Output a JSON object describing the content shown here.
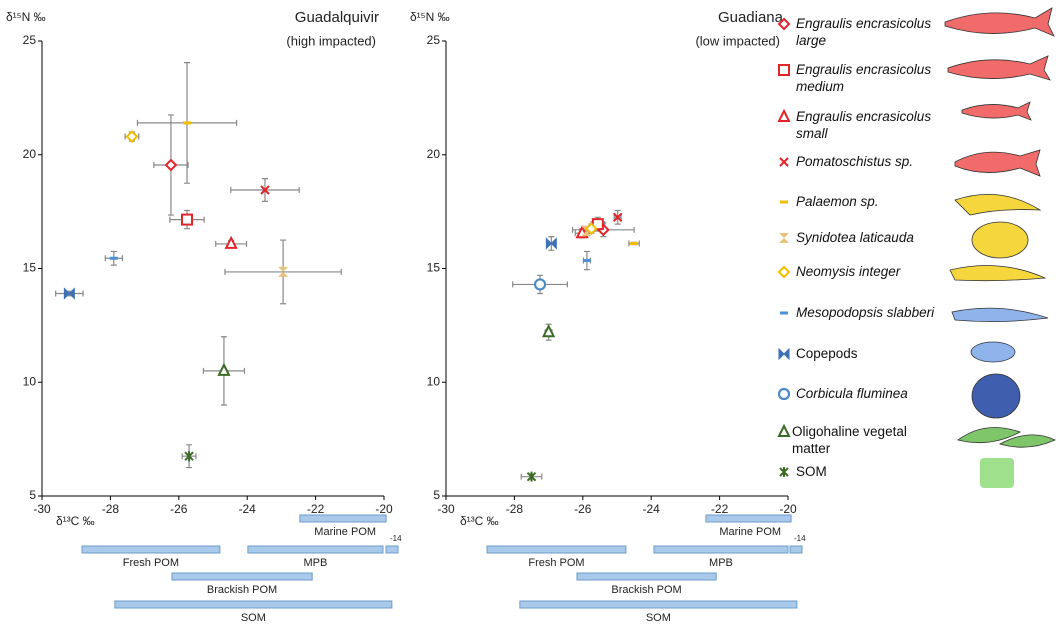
{
  "chart_data": [
    {
      "type": "scatter",
      "title": "Guadalquivir",
      "subtitle": "(high impacted)",
      "xlabel": "δ¹³C ‰",
      "ylabel": "δ¹⁵N ‰",
      "xlim": [
        -30,
        -20
      ],
      "xticks": [
        -30,
        -28,
        -26,
        -24,
        -22,
        -20
      ],
      "ylim": [
        5,
        25
      ],
      "yticks": [
        5,
        10,
        15,
        20,
        25
      ],
      "series": [
        {
          "name": "Engraulis encrasicolus large",
          "marker": "diamond",
          "color": "#e3242b",
          "x": [
            -26.23
          ],
          "values": [
            19.55
          ],
          "xerr": [
            0.5
          ],
          "yerr": [
            2.2
          ]
        },
        {
          "name": "Engraulis encrasicolus medium",
          "marker": "square",
          "color": "#e3242b",
          "x": [
            -25.76
          ],
          "values": [
            17.15
          ],
          "xerr": [
            0.5
          ],
          "yerr": [
            0.4
          ]
        },
        {
          "name": "Engraulis encrasicolus small",
          "marker": "triangle",
          "color": "#e3242b",
          "x": [
            -24.47
          ],
          "values": [
            16.08
          ],
          "xerr": [
            0.45
          ],
          "yerr": [
            0.15
          ]
        },
        {
          "name": "Pomatoschistus sp.",
          "marker": "cross",
          "color": "#e3242b",
          "x": [
            -23.48
          ],
          "values": [
            18.45
          ],
          "xerr": [
            1.0
          ],
          "yerr": [
            0.5
          ]
        },
        {
          "name": "Palaemon sp.",
          "marker": "bar",
          "color": "#f2bd00",
          "x": [
            -25.76
          ],
          "values": [
            21.4
          ],
          "xerr": [
            1.45
          ],
          "yerr": [
            2.65
          ]
        },
        {
          "name": "Synidotea laticauda",
          "marker": "hourglass",
          "color": "#e8c27a",
          "x": [
            -22.95
          ],
          "values": [
            14.85
          ],
          "xerr": [
            1.7
          ],
          "yerr": [
            1.4
          ]
        },
        {
          "name": "Neomysis integer",
          "marker": "diamond",
          "color": "#f2bd00",
          "x": [
            -27.37
          ],
          "values": [
            20.8
          ],
          "xerr": [
            0.2
          ],
          "yerr": [
            0.2
          ]
        },
        {
          "name": "Mesopodopsis slabberi",
          "marker": "bar",
          "color": "#4a90d9",
          "x": [
            -27.9
          ],
          "values": [
            15.45
          ],
          "xerr": [
            0.25
          ],
          "yerr": [
            0.3
          ]
        },
        {
          "name": "Copepods",
          "marker": "bowtie",
          "color": "#3f72b5",
          "x": [
            -29.2
          ],
          "values": [
            13.9
          ],
          "xerr": [
            0.4
          ],
          "yerr": [
            0.1
          ]
        },
        {
          "name": "Oligohaline vegetal matter",
          "marker": "triangle",
          "color": "#3a6b25",
          "x": [
            -24.68
          ],
          "values": [
            10.5
          ],
          "xerr": [
            0.6
          ],
          "yerr": [
            1.5
          ]
        },
        {
          "name": "SOM",
          "marker": "asterisk",
          "color": "#3a6b25",
          "x": [
            -25.7
          ],
          "values": [
            6.75
          ],
          "xerr": [
            0.2
          ],
          "yerr": [
            0.5
          ]
        }
      ],
      "ranges": [
        {
          "name": "Marine POM",
          "start": -22.46,
          "end": -19.94
        },
        {
          "name": "Fresh POM",
          "start": -28.83,
          "end": -24.8
        },
        {
          "name": "MPB",
          "start": -23.98,
          "end": -20.03
        },
        {
          "name": "Brackish POM",
          "start": -26.2,
          "end": -22.1
        },
        {
          "name": "SOM",
          "start": -27.87,
          "end": -19.77
        }
      ],
      "break_label": "-14"
    },
    {
      "type": "scatter",
      "title": "Guadiana",
      "subtitle": "(low impacted)",
      "xlabel": "δ¹³C ‰",
      "ylabel": "δ¹⁵N ‰",
      "xlim": [
        -30,
        -20
      ],
      "xticks": [
        -30,
        -28,
        -26,
        -24,
        -22,
        -20
      ],
      "ylim": [
        5,
        25
      ],
      "yticks": [
        5,
        10,
        15,
        20,
        25
      ],
      "series": [
        {
          "name": "Engraulis encrasicolus large",
          "marker": "diamond",
          "color": "#e3242b",
          "italic": true,
          "x": [
            -25.4
          ],
          "values": [
            16.7
          ],
          "xerr": [
            0.9
          ],
          "yerr": [
            0.3
          ]
        },
        {
          "name": "Engraulis encrasicolus medium",
          "marker": "square",
          "color": "#e3242b",
          "italic": true,
          "x": [
            -25.56
          ],
          "values": [
            16.95
          ],
          "xerr": [
            0.2
          ],
          "yerr": [
            0.3
          ]
        },
        {
          "name": "Engraulis encrasicolus small",
          "marker": "triangle",
          "color": "#e3242b",
          "italic": true,
          "x": [
            -26.02
          ],
          "values": [
            16.55
          ],
          "xerr": [
            0.2
          ],
          "yerr": [
            0.2
          ]
        },
        {
          "name": "Pomatoschistus sp.",
          "marker": "cross",
          "color": "#e3242b",
          "italic": true,
          "x": [
            -24.98
          ],
          "values": [
            17.25
          ],
          "xerr": [
            0.1
          ],
          "yerr": [
            0.3
          ]
        },
        {
          "name": "Palaemon sp.",
          "marker": "bar",
          "color": "#f2bd00",
          "italic": true,
          "x": [
            -24.5
          ],
          "values": [
            16.1
          ],
          "xerr": [
            0.15
          ],
          "yerr": [
            0.05
          ]
        },
        {
          "name": "Synidotea laticauda",
          "marker": "hourglass",
          "color": "#e8c27a",
          "italic": true,
          "x": [
            -25.9
          ],
          "values": [
            16.65
          ],
          "xerr": [
            0.1
          ],
          "yerr": [
            0.2
          ]
        },
        {
          "name": "Neomysis integer",
          "marker": "diamond",
          "color": "#f2bd00",
          "italic": true,
          "x": [
            -25.75
          ],
          "values": [
            16.75
          ],
          "xerr": [
            0.1
          ],
          "yerr": [
            0.2
          ]
        },
        {
          "name": "Mesopodopsis slabberi",
          "marker": "bar",
          "color": "#4a90d9",
          "italic": true,
          "x": [
            -25.88
          ],
          "values": [
            15.35
          ],
          "xerr": [
            0.1
          ],
          "yerr": [
            0.4
          ]
        },
        {
          "name": "Copepods",
          "marker": "bowtie",
          "color": "#3f72b5",
          "italic": false,
          "x": [
            -26.92
          ],
          "values": [
            16.1
          ],
          "xerr": [
            0.1
          ],
          "yerr": [
            0.3
          ]
        },
        {
          "name": "Corbicula fluminea",
          "marker": "circle",
          "color": "#4a8ac8",
          "italic": true,
          "x": [
            -27.25
          ],
          "values": [
            14.3
          ],
          "xerr": [
            0.8
          ],
          "yerr": [
            0.4
          ]
        },
        {
          "name": "Oligohaline vegetal matter",
          "marker": "triangle",
          "color": "#3a6b25",
          "italic": false,
          "x": [
            -27.0
          ],
          "values": [
            12.2
          ],
          "xerr": [
            0.1
          ],
          "yerr": [
            0.35
          ]
        },
        {
          "name": "SOM",
          "marker": "asterisk",
          "color": "#3a6b25",
          "italic": false,
          "x": [
            -27.5
          ],
          "values": [
            5.85
          ],
          "xerr": [
            0.3
          ],
          "yerr": [
            0.1
          ]
        }
      ],
      "ranges": [
        {
          "name": "Marine POM",
          "start": -22.4,
          "end": -19.91
        },
        {
          "name": "Fresh POM",
          "start": -28.8,
          "end": -24.74
        },
        {
          "name": "MPB",
          "start": -23.92,
          "end": -20.0
        },
        {
          "name": "Brackish POM",
          "start": -26.17,
          "end": -22.1
        },
        {
          "name": "SOM",
          "start": -27.84,
          "end": -19.74
        }
      ],
      "break_label": "-14"
    }
  ]
}
